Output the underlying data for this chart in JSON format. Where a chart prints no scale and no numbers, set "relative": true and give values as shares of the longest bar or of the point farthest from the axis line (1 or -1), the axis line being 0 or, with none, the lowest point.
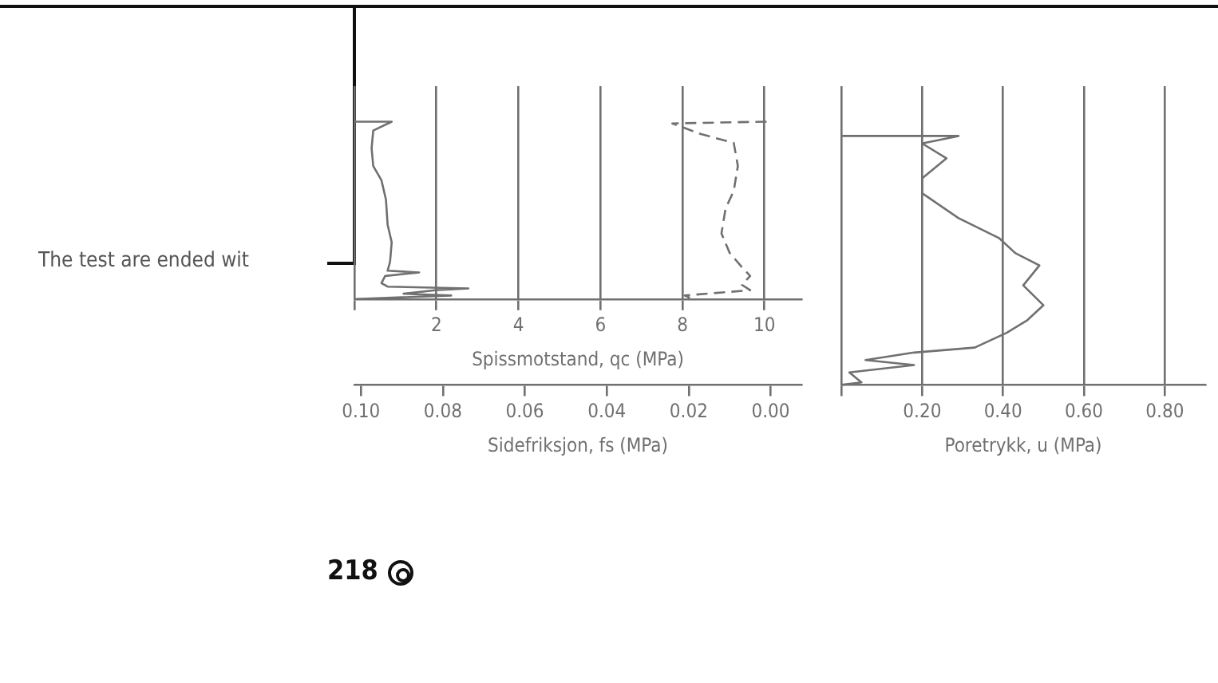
{
  "chart_data": [
    {
      "type": "line",
      "relative": true,
      "xlabel": "Spissmotstand, qc (MPa)",
      "x2label": "Sidefriksjon, fs (MPa)",
      "xlim": [
        0,
        10.9
      ],
      "xticks": [
        {
          "value": 0,
          "label": null
        },
        2,
        4,
        6,
        8,
        10
      ],
      "x2lim": [
        0.1016,
        -0.0075
      ],
      "x2ticks": [
        {
          "value": 0.1,
          "label": "0.10"
        },
        0.08,
        0.06,
        0.04,
        0.02,
        {
          "value": 0,
          "label": "0.00"
        }
      ],
      "grid": "x",
      "marker": "none",
      "annotations": [
        "The test are ended wit",
        "218"
      ],
      "series": [
        {
          "color": "#707070",
          "line_style": "solid",
          "x": [
            0,
            0.91,
            0.46,
            0.42,
            0.46,
            0.66,
            0.77,
            0.81,
            0.91,
            0.87,
            0.81,
            1.58,
            0.75,
            0.66,
            0.81,
            2.78,
            1.97,
            1.2,
            2.36,
            0.04
          ],
          "values": [
            1,
            1,
            0.95,
            0.85,
            0.75,
            0.67,
            0.56,
            0.42,
            0.32,
            0.21,
            0.16,
            0.15,
            0.13,
            0.09,
            0.07,
            0.06,
            0.05,
            0.03,
            0.02,
            0
          ]
        },
        {
          "color": "#707070",
          "line_style": "dashed",
          "axis": "x2",
          "x": [
            0.001,
            0.024,
            0.017,
            0.009,
            0.008,
            0.009,
            0.011,
            0.012,
            0.01,
            0.007,
            0.005,
            0.007,
            0.005,
            0.021,
            0.019
          ],
          "values": [
            1,
            0.99,
            0.93,
            0.88,
            0.75,
            0.61,
            0.51,
            0.37,
            0.26,
            0.18,
            0.13,
            0.08,
            0.05,
            0.02,
            0
          ]
        }
      ]
    },
    {
      "type": "line",
      "relative": true,
      "xlabel": "Poretrykk, u (MPa)",
      "xlim": [
        0,
        0.9
      ],
      "xticks": [
        {
          "value": 0,
          "label": null
        },
        {
          "value": 0.2,
          "label": "0.20"
        },
        {
          "value": 0.4,
          "label": "0.40"
        },
        {
          "value": 0.6,
          "label": "0.60"
        },
        {
          "value": 0.8,
          "label": "0.80"
        }
      ],
      "grid": "x",
      "marker": "none",
      "series": [
        {
          "color": "#707070",
          "line_style": "solid",
          "x": [
            0,
            0.29,
            0.2,
            0.26,
            0.2,
            0.2,
            0.29,
            0.39,
            0.43,
            0.49,
            0.45,
            0.5,
            0.46,
            0.41,
            0.33,
            0.18,
            0.06,
            0.18,
            0.02,
            0.05,
            0
          ],
          "values": [
            1,
            1,
            0.97,
            0.91,
            0.83,
            0.77,
            0.67,
            0.59,
            0.53,
            0.48,
            0.4,
            0.32,
            0.26,
            0.21,
            0.15,
            0.13,
            0.1,
            0.08,
            0.05,
            0.01,
            0
          ]
        }
      ]
    }
  ]
}
